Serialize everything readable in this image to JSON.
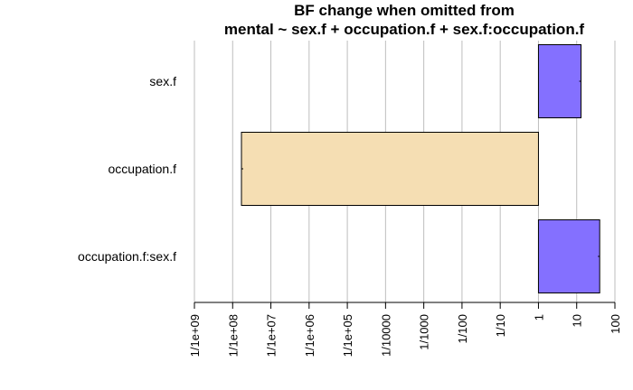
{
  "chart_data": {
    "type": "bar",
    "orientation": "horizontal",
    "title": "BF change when omitted from",
    "subtitle": "mental ~ sex.f + occupation.f + sex.f:occupation.f",
    "xlabel": "",
    "ylabel": "",
    "x_scale": "log10",
    "baseline": 1,
    "xlim": [
      1e-09,
      100
    ],
    "grid": "vertical",
    "categories": [
      "sex.f",
      "occupation.f",
      "occupation.f:sex.f"
    ],
    "values": [
      13,
      1.7e-08,
      40
    ],
    "bar_colors": [
      "#8470FF",
      "#F5DEB3",
      "#8470FF"
    ],
    "x_ticks": [
      {
        "value": 1e-09,
        "label": "1/1e+09"
      },
      {
        "value": 1e-08,
        "label": "1/1e+08"
      },
      {
        "value": 1e-07,
        "label": "1/1e+07"
      },
      {
        "value": 1e-06,
        "label": "1/1e+06"
      },
      {
        "value": 1e-05,
        "label": "1/1e+05"
      },
      {
        "value": 0.0001,
        "label": "1/10000"
      },
      {
        "value": 0.001,
        "label": "1/1000"
      },
      {
        "value": 0.01,
        "label": "1/100"
      },
      {
        "value": 0.1,
        "label": "1/10"
      },
      {
        "value": 1,
        "label": "1"
      },
      {
        "value": 10,
        "label": "10"
      },
      {
        "value": 100,
        "label": "100"
      }
    ],
    "colors": {
      "positive": "#8470FF",
      "negative": "#F5DEB3",
      "grid": "#BEBEBE",
      "axis": "#000000"
    }
  }
}
